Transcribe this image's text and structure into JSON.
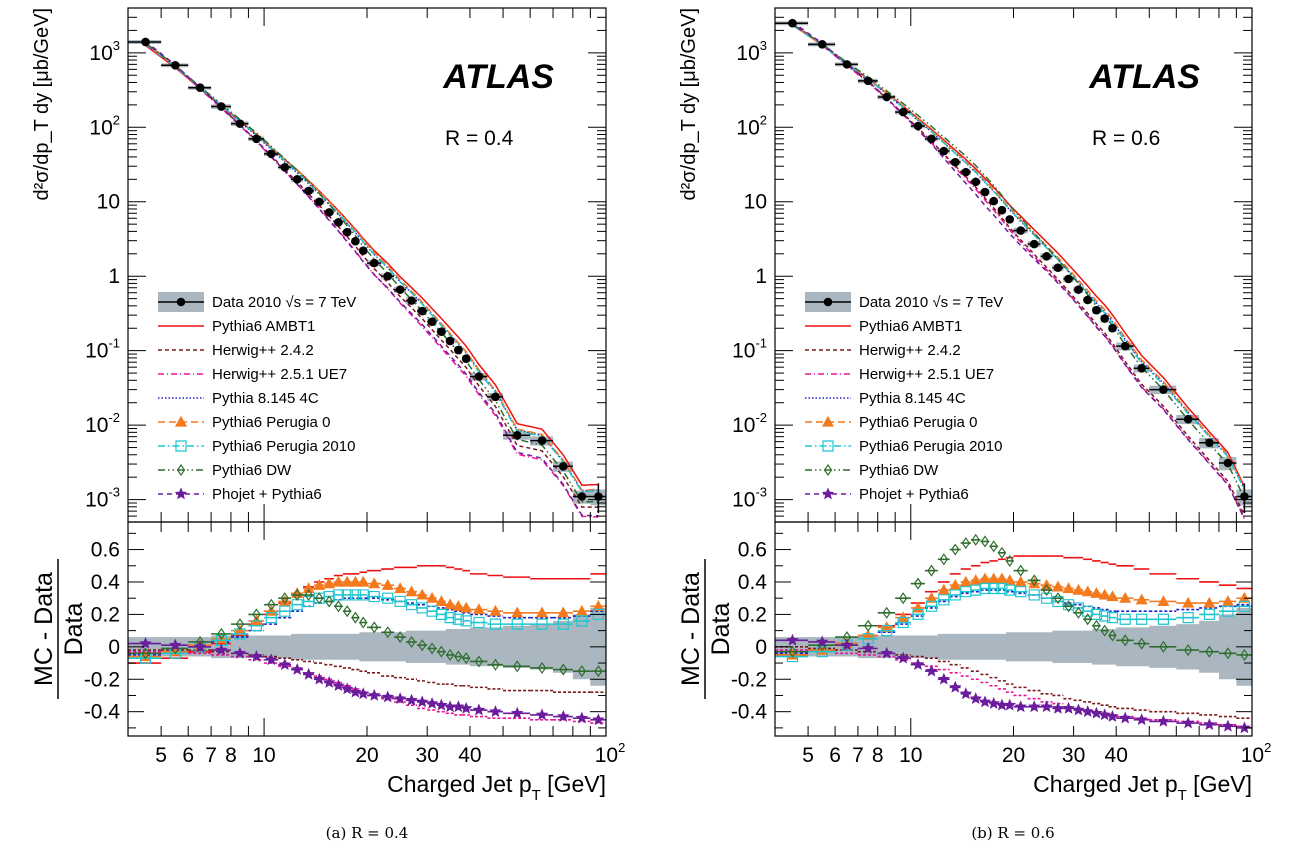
{
  "chart_data": [
    {
      "type": "line",
      "panel_id": "left",
      "caption": "(a) R = 0.4",
      "atlas_label": "ATLAS",
      "radius_label": "R = 0.4",
      "xlabel": "Charged Jet p",
      "xlabel_sub": "T",
      "xlabel_unit": " [GeV]",
      "ylabel": "d²σ/dp_T dy [μb/GeV]",
      "ratio_ylabel_top": "MC - Data",
      "ratio_ylabel_bottom": "Data",
      "x_scale": "log",
      "y_scale": "log",
      "xlim": [
        4,
        100
      ],
      "ylim": [
        0.0005,
        4000
      ],
      "ratio_ylim": [
        -0.55,
        0.77
      ],
      "xticks": [
        "5",
        "6",
        "7",
        "8",
        "10",
        "20",
        "30",
        "40"
      ],
      "xtick_top": "10",
      "xtick_top_exp": "2",
      "yticks": [
        {
          "v": 0.001,
          "text": "10",
          "exp": "-3"
        },
        {
          "v": 0.01,
          "text": "10",
          "exp": "-2"
        },
        {
          "v": 0.1,
          "text": "10",
          "exp": "-1"
        },
        {
          "v": 1,
          "text": "1",
          "exp": ""
        },
        {
          "v": 10,
          "text": "10",
          "exp": ""
        },
        {
          "v": 100,
          "text": "10",
          "exp": "2"
        },
        {
          "v": 1000,
          "text": "10",
          "exp": "3"
        }
      ],
      "ratio_yticks": [
        "-0.4",
        "-0.2",
        "0",
        "0.2",
        "0.4",
        "0.6"
      ],
      "data_x": [
        4.5,
        5.5,
        6.5,
        7.5,
        8.5,
        9.5,
        10.5,
        11.5,
        12.5,
        13.5,
        14.5,
        15.5,
        16.5,
        17.5,
        18.5,
        19.5,
        21,
        23,
        25,
        27,
        29,
        31,
        33,
        35,
        37,
        39,
        42.5,
        47.5,
        55,
        65,
        75,
        85,
        95
      ],
      "data_xerr": [
        0.5,
        0.5,
        0.5,
        0.5,
        0.5,
        0.5,
        0.5,
        0.5,
        0.5,
        0.5,
        0.5,
        0.5,
        0.5,
        0.5,
        0.5,
        0.5,
        1,
        1,
        1,
        1,
        1,
        1,
        1,
        1,
        1,
        1,
        2.5,
        2.5,
        5,
        5,
        5,
        5,
        5
      ],
      "data_y": [
        1400,
        680,
        340,
        190,
        112,
        70,
        44,
        29,
        20,
        14,
        10,
        7.2,
        5.3,
        3.9,
        2.95,
        2.2,
        1.5,
        1.0,
        0.66,
        0.47,
        0.34,
        0.245,
        0.18,
        0.135,
        0.102,
        0.078,
        0.045,
        0.024,
        0.0073,
        0.0062,
        0.0028,
        0.0011,
        0.0011
      ],
      "data_unc_rel": [
        0.06,
        0.06,
        0.06,
        0.07,
        0.07,
        0.07,
        0.07,
        0.07,
        0.08,
        0.08,
        0.08,
        0.08,
        0.08,
        0.08,
        0.08,
        0.09,
        0.09,
        0.09,
        0.09,
        0.1,
        0.1,
        0.1,
        0.1,
        0.11,
        0.11,
        0.11,
        0.12,
        0.12,
        0.13,
        0.14,
        0.16,
        0.2,
        0.24
      ],
      "series": [
        {
          "name": "Data 2010  √s = 7 TeV",
          "style": "data",
          "color": "#000000"
        },
        {
          "name": "Pythia6 AMBT1",
          "style": "line",
          "color": "#ee1111",
          "dash": "",
          "marker": "none",
          "ratio": [
            -0.1,
            -0.07,
            -0.03,
            0.02,
            0.07,
            0.14,
            0.2,
            0.27,
            0.33,
            0.37,
            0.4,
            0.42,
            0.44,
            0.45,
            0.45,
            0.46,
            0.47,
            0.48,
            0.49,
            0.49,
            0.5,
            0.5,
            0.5,
            0.49,
            0.48,
            0.47,
            0.45,
            0.44,
            0.43,
            0.42,
            0.42,
            0.42,
            0.45
          ]
        },
        {
          "name": "Herwig++ 2.4.2",
          "style": "line",
          "color": "#7a1a1a",
          "dash": "4,3",
          "marker": "none",
          "ratio": [
            -0.02,
            -0.02,
            -0.02,
            -0.03,
            -0.04,
            -0.05,
            -0.06,
            -0.07,
            -0.08,
            -0.09,
            -0.1,
            -0.11,
            -0.12,
            -0.13,
            -0.14,
            -0.15,
            -0.16,
            -0.18,
            -0.19,
            -0.2,
            -0.21,
            -0.22,
            -0.23,
            -0.23,
            -0.24,
            -0.24,
            -0.25,
            -0.26,
            -0.27,
            -0.27,
            -0.28,
            -0.28,
            -0.28
          ]
        },
        {
          "name": "Herwig++ 2.5.1 UE7",
          "style": "line",
          "color": "#ee1199",
          "dash": "6,3,1,3",
          "marker": "none",
          "ratio": [
            -0.03,
            -0.03,
            -0.04,
            -0.05,
            -0.06,
            -0.08,
            -0.1,
            -0.12,
            -0.14,
            -0.16,
            -0.18,
            -0.2,
            -0.22,
            -0.24,
            -0.26,
            -0.28,
            -0.3,
            -0.32,
            -0.34,
            -0.36,
            -0.38,
            -0.39,
            -0.4,
            -0.41,
            -0.42,
            -0.42,
            -0.43,
            -0.44,
            -0.44,
            -0.45,
            -0.45,
            -0.46,
            -0.47
          ]
        },
        {
          "name": "Pythia 8.145 4C",
          "style": "line",
          "color": "#2222cc",
          "dash": "1.5,2",
          "marker": "none",
          "ratio": [
            -0.05,
            -0.03,
            0,
            0.03,
            0.06,
            0.1,
            0.14,
            0.18,
            0.22,
            0.25,
            0.27,
            0.28,
            0.29,
            0.3,
            0.3,
            0.3,
            0.3,
            0.29,
            0.28,
            0.27,
            0.26,
            0.25,
            0.24,
            0.23,
            0.22,
            0.21,
            0.2,
            0.19,
            0.18,
            0.18,
            0.18,
            0.19,
            0.22
          ]
        },
        {
          "name": "Pythia6 Perugia 0",
          "style": "line",
          "color": "#f47a1f",
          "dash": "7,4",
          "marker": "triangle",
          "ratio": [
            -0.06,
            -0.03,
            0.01,
            0.05,
            0.1,
            0.16,
            0.22,
            0.28,
            0.33,
            0.36,
            0.38,
            0.39,
            0.4,
            0.4,
            0.4,
            0.4,
            0.39,
            0.38,
            0.36,
            0.34,
            0.32,
            0.3,
            0.28,
            0.26,
            0.25,
            0.24,
            0.23,
            0.22,
            0.21,
            0.21,
            0.21,
            0.22,
            0.25
          ]
        },
        {
          "name": "Pythia6 Perugia 2010",
          "style": "line",
          "color": "#1fc6d0",
          "dash": "7,3,1.5,3",
          "marker": "square",
          "ratio": [
            -0.07,
            -0.04,
            0,
            0.04,
            0.08,
            0.13,
            0.18,
            0.22,
            0.26,
            0.28,
            0.3,
            0.31,
            0.32,
            0.32,
            0.32,
            0.32,
            0.31,
            0.3,
            0.28,
            0.26,
            0.24,
            0.22,
            0.2,
            0.18,
            0.17,
            0.16,
            0.15,
            0.14,
            0.14,
            0.14,
            0.14,
            0.16,
            0.2
          ]
        },
        {
          "name": "Pythia6 DW",
          "style": "line",
          "color": "#2f6e2f",
          "dash": "7,3,1.5,3,1.5,3",
          "marker": "diamond",
          "ratio": [
            -0.04,
            -0.01,
            0.03,
            0.08,
            0.14,
            0.2,
            0.26,
            0.3,
            0.32,
            0.32,
            0.3,
            0.28,
            0.25,
            0.22,
            0.18,
            0.15,
            0.12,
            0.09,
            0.06,
            0.03,
            0.01,
            -0.01,
            -0.03,
            -0.05,
            -0.06,
            -0.07,
            -0.09,
            -0.11,
            -0.12,
            -0.13,
            -0.14,
            -0.15,
            -0.15
          ]
        },
        {
          "name": "Phojet + Pythia6",
          "style": "line",
          "color": "#6b1d9c",
          "dash": "5,4",
          "marker": "star",
          "ratio": [
            0.02,
            0.01,
            0,
            -0.02,
            -0.04,
            -0.06,
            -0.08,
            -0.11,
            -0.14,
            -0.17,
            -0.2,
            -0.22,
            -0.24,
            -0.26,
            -0.28,
            -0.29,
            -0.3,
            -0.31,
            -0.32,
            -0.33,
            -0.34,
            -0.35,
            -0.36,
            -0.37,
            -0.37,
            -0.38,
            -0.39,
            -0.4,
            -0.41,
            -0.42,
            -0.43,
            -0.44,
            -0.45
          ]
        }
      ]
    },
    {
      "type": "line",
      "panel_id": "right",
      "caption": "(b) R = 0.6",
      "atlas_label": "ATLAS",
      "radius_label": "R = 0.6",
      "xlabel": "Charged Jet p",
      "xlabel_sub": "T",
      "xlabel_unit": " [GeV]",
      "ylabel": "d²σ/dp_T dy [μb/GeV]",
      "ratio_ylabel_top": "MC - Data",
      "ratio_ylabel_bottom": "Data",
      "x_scale": "log",
      "y_scale": "log",
      "xlim": [
        4,
        100
      ],
      "ylim": [
        0.0005,
        4000
      ],
      "ratio_ylim": [
        -0.55,
        0.77
      ],
      "xticks": [
        "5",
        "6",
        "7",
        "8",
        "10",
        "20",
        "30",
        "40"
      ],
      "xtick_top": "10",
      "xtick_top_exp": "2",
      "yticks": [
        {
          "v": 0.001,
          "text": "10",
          "exp": "-3"
        },
        {
          "v": 0.01,
          "text": "10",
          "exp": "-2"
        },
        {
          "v": 0.1,
          "text": "10",
          "exp": "-1"
        },
        {
          "v": 1,
          "text": "1",
          "exp": ""
        },
        {
          "v": 10,
          "text": "10",
          "exp": ""
        },
        {
          "v": 100,
          "text": "10",
          "exp": "2"
        },
        {
          "v": 1000,
          "text": "10",
          "exp": "3"
        }
      ],
      "ratio_yticks": [
        "-0.4",
        "-0.2",
        "0",
        "0.2",
        "0.4",
        "0.6"
      ],
      "data_x": [
        4.5,
        5.5,
        6.5,
        7.5,
        8.5,
        9.5,
        10.5,
        11.5,
        12.5,
        13.5,
        14.5,
        15.5,
        16.5,
        17.5,
        18.5,
        19.5,
        21,
        23,
        25,
        27,
        29,
        31,
        33,
        35,
        37,
        39,
        42.5,
        47.5,
        55,
        65,
        75,
        85,
        95
      ],
      "data_xerr": [
        0.5,
        0.5,
        0.5,
        0.5,
        0.5,
        0.5,
        0.5,
        0.5,
        0.5,
        0.5,
        0.5,
        0.5,
        0.5,
        0.5,
        0.5,
        0.5,
        1,
        1,
        1,
        1,
        1,
        1,
        1,
        1,
        1,
        1,
        2.5,
        2.5,
        5,
        5,
        5,
        5,
        5
      ],
      "data_y": [
        2500,
        1300,
        700,
        420,
        255,
        160,
        104,
        70,
        48,
        34,
        25,
        18.5,
        13.5,
        10.2,
        7.7,
        5.8,
        4.1,
        2.7,
        1.85,
        1.3,
        0.92,
        0.66,
        0.48,
        0.35,
        0.27,
        0.2,
        0.115,
        0.058,
        0.03,
        0.012,
        0.0058,
        0.0031,
        0.0011
      ],
      "data_unc_rel": [
        0.06,
        0.06,
        0.06,
        0.07,
        0.07,
        0.07,
        0.07,
        0.07,
        0.08,
        0.08,
        0.08,
        0.08,
        0.08,
        0.08,
        0.08,
        0.09,
        0.09,
        0.09,
        0.09,
        0.1,
        0.1,
        0.1,
        0.1,
        0.11,
        0.11,
        0.11,
        0.12,
        0.12,
        0.13,
        0.14,
        0.16,
        0.2,
        0.24
      ],
      "series": [
        {
          "name": "Data 2010  √s = 7 TeV",
          "style": "data",
          "color": "#000000"
        },
        {
          "name": "Pythia6 AMBT1",
          "style": "line",
          "color": "#ee1111",
          "dash": "",
          "marker": "none",
          "ratio": [
            -0.05,
            -0.02,
            0.02,
            0.07,
            0.13,
            0.2,
            0.27,
            0.34,
            0.4,
            0.45,
            0.48,
            0.5,
            0.52,
            0.53,
            0.54,
            0.55,
            0.56,
            0.56,
            0.56,
            0.56,
            0.55,
            0.55,
            0.54,
            0.53,
            0.52,
            0.51,
            0.5,
            0.48,
            0.45,
            0.42,
            0.4,
            0.38,
            0.36
          ]
        },
        {
          "name": "Herwig++ 2.4.2",
          "style": "line",
          "color": "#7a1a1a",
          "dash": "4,3",
          "marker": "none",
          "ratio": [
            0,
            -0.01,
            -0.02,
            -0.03,
            -0.04,
            -0.05,
            -0.06,
            -0.07,
            -0.09,
            -0.11,
            -0.13,
            -0.15,
            -0.17,
            -0.19,
            -0.21,
            -0.23,
            -0.25,
            -0.27,
            -0.29,
            -0.3,
            -0.32,
            -0.33,
            -0.34,
            -0.35,
            -0.36,
            -0.37,
            -0.38,
            -0.39,
            -0.4,
            -0.41,
            -0.42,
            -0.43,
            -0.44
          ]
        },
        {
          "name": "Herwig++ 2.5.1 UE7",
          "style": "line",
          "color": "#ee1199",
          "dash": "6,3,1,3",
          "marker": "none",
          "ratio": [
            -0.02,
            -0.03,
            -0.04,
            -0.05,
            -0.06,
            -0.08,
            -0.1,
            -0.12,
            -0.14,
            -0.16,
            -0.18,
            -0.2,
            -0.22,
            -0.24,
            -0.26,
            -0.28,
            -0.3,
            -0.32,
            -0.34,
            -0.35,
            -0.37,
            -0.38,
            -0.39,
            -0.4,
            -0.41,
            -0.42,
            -0.43,
            -0.44,
            -0.45,
            -0.46,
            -0.47,
            -0.48,
            -0.49
          ]
        },
        {
          "name": "Pythia 8.145 4C",
          "style": "line",
          "color": "#2222cc",
          "dash": "1.5,2",
          "marker": "none",
          "ratio": [
            -0.04,
            -0.02,
            0.01,
            0.05,
            0.09,
            0.14,
            0.19,
            0.24,
            0.28,
            0.31,
            0.33,
            0.34,
            0.35,
            0.35,
            0.35,
            0.34,
            0.33,
            0.32,
            0.3,
            0.28,
            0.27,
            0.26,
            0.25,
            0.24,
            0.23,
            0.22,
            0.22,
            0.22,
            0.22,
            0.23,
            0.24,
            0.25,
            0.26
          ]
        },
        {
          "name": "Pythia6 Perugia 0",
          "style": "line",
          "color": "#f47a1f",
          "dash": "7,4",
          "marker": "triangle",
          "ratio": [
            -0.05,
            -0.02,
            0.02,
            0.07,
            0.12,
            0.18,
            0.24,
            0.3,
            0.35,
            0.38,
            0.4,
            0.41,
            0.42,
            0.42,
            0.42,
            0.41,
            0.4,
            0.39,
            0.38,
            0.37,
            0.36,
            0.35,
            0.34,
            0.33,
            0.32,
            0.31,
            0.3,
            0.29,
            0.28,
            0.27,
            0.27,
            0.28,
            0.3
          ]
        },
        {
          "name": "Pythia6 Perugia 2010",
          "style": "line",
          "color": "#1fc6d0",
          "dash": "7,3,1.5,3",
          "marker": "square",
          "ratio": [
            -0.06,
            -0.03,
            0.01,
            0.05,
            0.1,
            0.15,
            0.2,
            0.25,
            0.29,
            0.32,
            0.34,
            0.35,
            0.36,
            0.36,
            0.36,
            0.35,
            0.34,
            0.32,
            0.3,
            0.28,
            0.26,
            0.24,
            0.22,
            0.2,
            0.19,
            0.18,
            0.17,
            0.17,
            0.17,
            0.18,
            0.2,
            0.22,
            0.25
          ]
        },
        {
          "name": "Pythia6 DW",
          "style": "line",
          "color": "#2f6e2f",
          "dash": "7,3,1.5,3,1.5,3",
          "marker": "diamond",
          "ratio": [
            -0.03,
            0.01,
            0.06,
            0.13,
            0.21,
            0.3,
            0.39,
            0.47,
            0.54,
            0.6,
            0.64,
            0.66,
            0.65,
            0.62,
            0.58,
            0.53,
            0.47,
            0.41,
            0.35,
            0.3,
            0.25,
            0.21,
            0.17,
            0.13,
            0.1,
            0.07,
            0.04,
            0.02,
            0,
            -0.02,
            -0.03,
            -0.04,
            -0.05
          ]
        },
        {
          "name": "Phojet + Pythia6",
          "style": "line",
          "color": "#6b1d9c",
          "dash": "5,4",
          "marker": "star",
          "ratio": [
            0.04,
            0.03,
            0.01,
            -0.01,
            -0.04,
            -0.07,
            -0.11,
            -0.15,
            -0.2,
            -0.25,
            -0.29,
            -0.32,
            -0.34,
            -0.35,
            -0.36,
            -0.36,
            -0.37,
            -0.37,
            -0.37,
            -0.38,
            -0.38,
            -0.39,
            -0.4,
            -0.41,
            -0.42,
            -0.43,
            -0.44,
            -0.45,
            -0.46,
            -0.47,
            -0.48,
            -0.49,
            -0.5
          ]
        }
      ]
    }
  ]
}
